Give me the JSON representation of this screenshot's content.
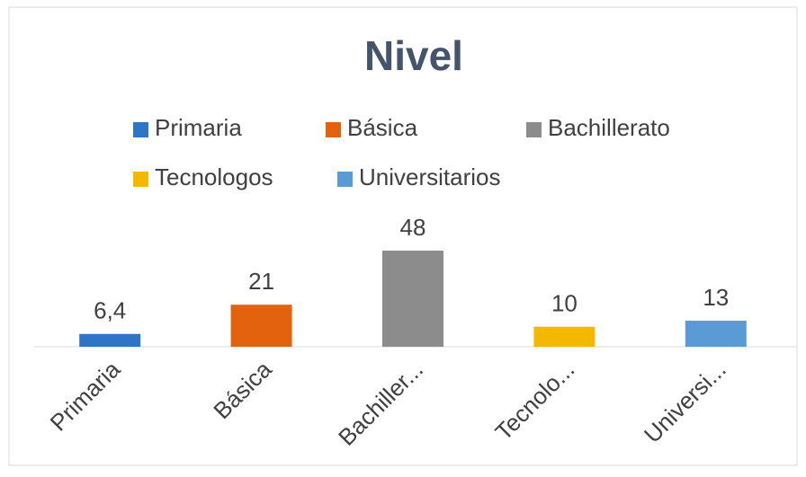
{
  "chart_data": {
    "type": "bar",
    "title": "Nivel",
    "categories": [
      "Primaria",
      "Básica",
      "Bachiller...",
      "Tecnolo...",
      "Universi..."
    ],
    "legend": [
      "Primaria",
      "Básica",
      "Bachillerato",
      "Tecnologos",
      "Universitarios"
    ],
    "colors": [
      "#2e75c6",
      "#e2620e",
      "#8c8c8c",
      "#f5b800",
      "#5b9bd5"
    ],
    "values": [
      6.4,
      21,
      48,
      10,
      13
    ],
    "value_labels": [
      "6,4",
      "21",
      "48",
      "10",
      "13"
    ]
  }
}
